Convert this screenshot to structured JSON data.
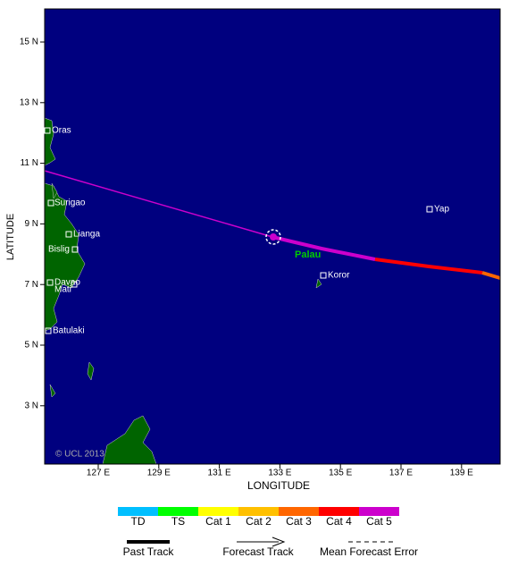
{
  "map": {
    "xlabel": "LONGITUDE",
    "ylabel": "LATITUDE",
    "lon_ticks": [
      {
        "value": 127,
        "label": "127 E"
      },
      {
        "value": 129,
        "label": "129 E"
      },
      {
        "value": 131,
        "label": "131 E"
      },
      {
        "value": 133,
        "label": "133 E"
      },
      {
        "value": 135,
        "label": "135 E"
      },
      {
        "value": 137,
        "label": "137 E"
      },
      {
        "value": 139,
        "label": "139 E"
      }
    ],
    "lat_ticks": [
      {
        "value": 15,
        "label": "15 N"
      },
      {
        "value": 13,
        "label": "13 N"
      },
      {
        "value": 11,
        "label": "11 N"
      },
      {
        "value": 9,
        "label": "9 N"
      },
      {
        "value": 7,
        "label": "7 N"
      },
      {
        "value": 5,
        "label": "5 N"
      },
      {
        "value": 3,
        "label": "3 N"
      }
    ],
    "places": [
      "Oras",
      "Surigao",
      "Lianga",
      "Bislig",
      "Davao",
      "Mati",
      "Batulaki",
      "Yap",
      "Koror"
    ],
    "region_label": "Palau",
    "credit": "© UCL 2013"
  },
  "legend": {
    "categories": [
      {
        "label": "TD",
        "color": "#00bfff"
      },
      {
        "label": "TS",
        "color": "#00ff00"
      },
      {
        "label": "Cat 1",
        "color": "#ffff00"
      },
      {
        "label": "Cat 2",
        "color": "#ffc000"
      },
      {
        "label": "Cat 3",
        "color": "#ff6600"
      },
      {
        "label": "Cat 4",
        "color": "#ff0000"
      },
      {
        "label": "Cat 5",
        "color": "#cc00cc"
      }
    ],
    "track_keys": [
      "Past Track",
      "Forecast Track",
      "Mean Forecast Error"
    ]
  }
}
